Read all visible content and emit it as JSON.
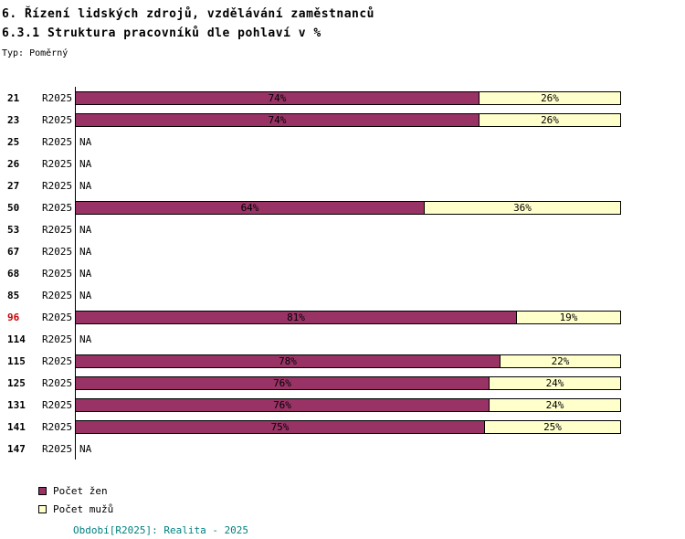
{
  "header": {
    "title1": "6. Řízení lidských zdrojů, vzdělávání zaměstnanců",
    "title2": "6.3.1 Struktura pracovníků dle pohlaví v %",
    "type_label": "Typ: Poměrný"
  },
  "chart_data": {
    "type": "bar",
    "orientation": "horizontal",
    "stacked": true,
    "xlim": [
      0,
      100
    ],
    "period_label": "R2025",
    "na_label": "NA",
    "colors": {
      "women": "#993366",
      "men": "#FFFFCC",
      "highlight_row": "#cc0000"
    },
    "legend": [
      {
        "label": "Počet žen",
        "color": "#993366"
      },
      {
        "label": "Počet mužů",
        "color": "#FFFFCC"
      }
    ],
    "rows": [
      {
        "id": "21",
        "women": 74,
        "men": 26
      },
      {
        "id": "23",
        "women": 74,
        "men": 26
      },
      {
        "id": "25",
        "women": null,
        "men": null
      },
      {
        "id": "26",
        "women": null,
        "men": null
      },
      {
        "id": "27",
        "women": null,
        "men": null
      },
      {
        "id": "50",
        "women": 64,
        "men": 36
      },
      {
        "id": "53",
        "women": null,
        "men": null
      },
      {
        "id": "67",
        "women": null,
        "men": null
      },
      {
        "id": "68",
        "women": null,
        "men": null
      },
      {
        "id": "85",
        "women": null,
        "men": null
      },
      {
        "id": "96",
        "women": 81,
        "men": 19,
        "highlight": true
      },
      {
        "id": "114",
        "women": null,
        "men": null
      },
      {
        "id": "115",
        "women": 78,
        "men": 22
      },
      {
        "id": "125",
        "women": 76,
        "men": 24
      },
      {
        "id": "131",
        "women": 76,
        "men": 24
      },
      {
        "id": "141",
        "women": 75,
        "men": 25
      },
      {
        "id": "147",
        "women": null,
        "men": null
      }
    ]
  },
  "footer": {
    "caption": "Období[R2025]: Realita - 2025"
  }
}
